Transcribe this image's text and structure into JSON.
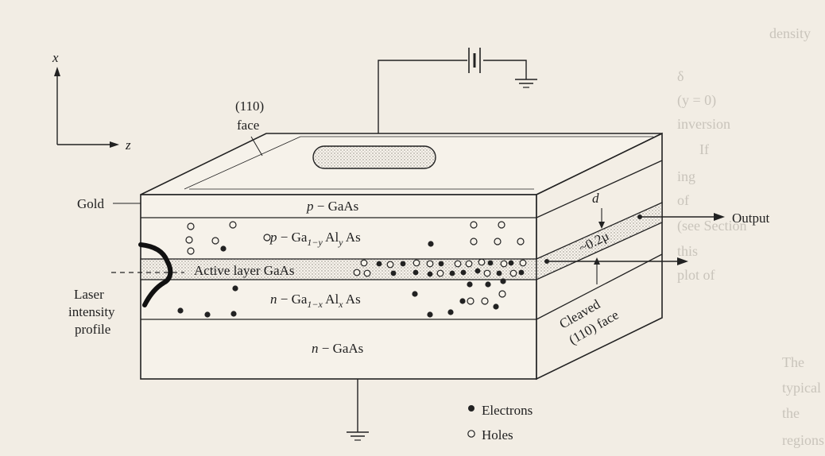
{
  "axes": {
    "x_label": "x",
    "z_label": "z"
  },
  "labels": {
    "face_top_line1": "(110)",
    "face_top_line2": "face",
    "gold": "Gold",
    "laser_line1": "Laser",
    "laser_line2": "intensity",
    "laser_line3": "profile",
    "output": "Output",
    "thickness_d": "d",
    "thickness_value": "~0.2μ",
    "cleaved_line1": "Cleaved",
    "cleaved_line2": "(110) face"
  },
  "layers": {
    "p_gaas": {
      "pre": "p",
      "text": " − GaAs"
    },
    "p_gaal": {
      "pre": "p",
      "text": " − Ga",
      "sub1": "1−y",
      "mid": " Al",
      "sub2": "y",
      "post": " As"
    },
    "active": {
      "text": "Active layer GaAs"
    },
    "n_gaal": {
      "pre": "n",
      "text": " − Ga",
      "sub1": "1−x",
      "mid": " Al",
      "sub2": "x",
      "post": " As"
    },
    "n_gaas": {
      "pre": "n",
      "text": " − GaAs"
    }
  },
  "legend": {
    "electrons": "Electrons",
    "holes": "Holes"
  },
  "background_text": {
    "fragments": [
      "density",
      "δ",
      "(y = 0)",
      "inversion",
      "If",
      "ing",
      "of",
      "(see Section",
      "this",
      "plot of",
      "The",
      "typical of GaAs",
      "the",
      "regions of"
    ]
  },
  "colors": {
    "ink": "#1f1f1f",
    "paper": "#f2ede4",
    "dots": "#ccc6bb"
  }
}
